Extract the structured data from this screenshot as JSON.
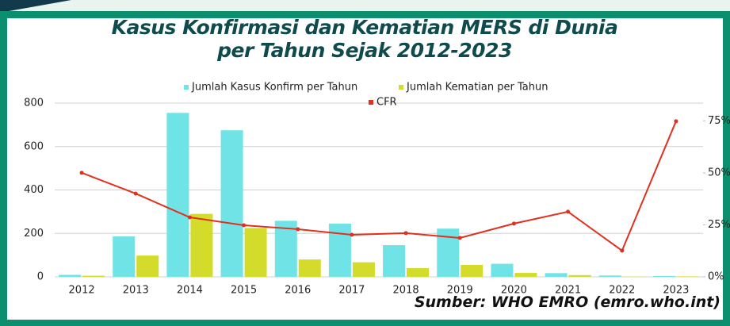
{
  "chart_data": {
    "type": "bar",
    "title": "Kasus Konfirmasi dan Kematian MERS di Dunia per Tahun Sejak 2012-2023",
    "source": "Sumber: WHO EMRO (emro.who.int)",
    "categories": [
      "2012",
      "2013",
      "2014",
      "2015",
      "2016",
      "2017",
      "2018",
      "2019",
      "2020",
      "2021",
      "2022",
      "2023"
    ],
    "series": [
      {
        "name": "Jumlah Kasus Konfirm per Tahun",
        "color": "#6fe3e6",
        "values": [
          9,
          186,
          755,
          675,
          258,
          245,
          146,
          222,
          60,
          17,
          6,
          4
        ]
      },
      {
        "name": "Jumlah Kematian per Tahun",
        "color": "#d3dc2a",
        "values": [
          5,
          98,
          290,
          225,
          80,
          67,
          40,
          55,
          18,
          8,
          1,
          2
        ]
      },
      {
        "name": "CFR",
        "color": "#e0301e",
        "axis": "y2",
        "values": [
          50,
          40,
          28.6,
          24.8,
          22.9,
          20.2,
          21,
          18.7,
          25.6,
          31.3,
          12.6,
          74.8
        ]
      }
    ],
    "ylim": [
      0,
      800
    ],
    "yticks": [
      0,
      200,
      400,
      600,
      800
    ],
    "y2lim": [
      0,
      83.5
    ],
    "y2ticks": [
      {
        "value": 0,
        "label": "0%"
      },
      {
        "value": 25,
        "label": "25%"
      },
      {
        "value": 50,
        "label": "50%"
      },
      {
        "value": 75,
        "label": "75%"
      }
    ],
    "grid": true
  }
}
